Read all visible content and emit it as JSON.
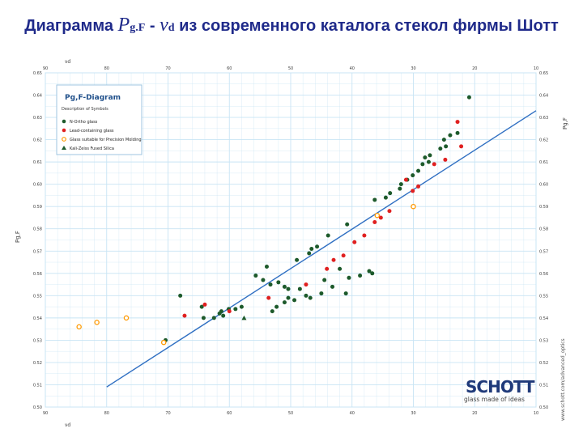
{
  "slide": {
    "title_prefix": "Диаграмма ",
    "title_p": "P",
    "title_p_sub": "g.F",
    "title_dash": " - ",
    "title_nu": "ν",
    "title_nu_sub": "d",
    "title_suffix": " из современного каталога стекол фирмы Шотт"
  },
  "legend": {
    "title": "Pg,F-Diagram",
    "subtitle": "Description of Symbols",
    "items": [
      {
        "label": "N-Ortho glass",
        "color": "#1d5a2b",
        "marker": "circle"
      },
      {
        "label": "Lead-containing glass",
        "color": "#e02020",
        "marker": "circle"
      },
      {
        "label": "Glass suitable for Precision Molding",
        "color": "#ff9900",
        "marker": "circle-open"
      },
      {
        "label": "Kali-Zeiss Fused Silica",
        "color": "#1d5a2b",
        "marker": "triangle"
      }
    ]
  },
  "brand": {
    "logo": "SCHOTT",
    "tagline": "glass made of ideas",
    "website": "www.schott.com/advanced_optics"
  },
  "colors": {
    "grid": "#c8e4f4",
    "normal_line": "#2f6fc2",
    "glass_green": "#1d5a2b",
    "glass_red": "#e02020",
    "axis_text": "#404040",
    "legend_border": "#9fc6e0"
  },
  "chart_data": {
    "type": "scatter",
    "title": "",
    "xlabel": "νd",
    "ylabel": "Pg,F",
    "x_reversed": true,
    "xlim": [
      90,
      10
    ],
    "ylim": [
      0.5,
      0.65
    ],
    "x_ticks": [
      "90",
      "80",
      "70",
      "60",
      "50",
      "40",
      "30",
      "20",
      "10"
    ],
    "y_ticks": [
      "0.50",
      "0.51",
      "0.52",
      "0.53",
      "0.54",
      "0.55",
      "0.56",
      "0.57",
      "0.58",
      "0.59",
      "0.60",
      "0.61",
      "0.62",
      "0.63",
      "0.64",
      "0.65"
    ],
    "grid": true,
    "legend_position": "top-left",
    "normal_line": {
      "x": [
        80,
        10
      ],
      "y": [
        0.509,
        0.633
      ]
    },
    "series": [
      {
        "name": "N-Ortho glass",
        "marker": "circle",
        "color": "#1d5a2b",
        "points": [
          {
            "x": 20.9,
            "y": 0.639
          },
          {
            "x": 22.8,
            "y": 0.623
          },
          {
            "x": 24.0,
            "y": 0.622
          },
          {
            "x": 25.0,
            "y": 0.62
          },
          {
            "x": 24.7,
            "y": 0.617
          },
          {
            "x": 25.6,
            "y": 0.616
          },
          {
            "x": 27.3,
            "y": 0.613
          },
          {
            "x": 28.1,
            "y": 0.612
          },
          {
            "x": 27.5,
            "y": 0.61
          },
          {
            "x": 28.5,
            "y": 0.609
          },
          {
            "x": 29.2,
            "y": 0.606
          },
          {
            "x": 30.1,
            "y": 0.604
          },
          {
            "x": 31.0,
            "y": 0.602
          },
          {
            "x": 32.0,
            "y": 0.6
          },
          {
            "x": 32.2,
            "y": 0.598
          },
          {
            "x": 33.8,
            "y": 0.596
          },
          {
            "x": 34.5,
            "y": 0.594
          },
          {
            "x": 36.3,
            "y": 0.593
          },
          {
            "x": 40.8,
            "y": 0.582
          },
          {
            "x": 43.9,
            "y": 0.577
          },
          {
            "x": 45.7,
            "y": 0.572
          },
          {
            "x": 46.6,
            "y": 0.571
          },
          {
            "x": 47.0,
            "y": 0.569
          },
          {
            "x": 49.0,
            "y": 0.566
          },
          {
            "x": 53.9,
            "y": 0.563
          },
          {
            "x": 55.7,
            "y": 0.559
          },
          {
            "x": 54.5,
            "y": 0.557
          },
          {
            "x": 53.3,
            "y": 0.555
          },
          {
            "x": 52.0,
            "y": 0.556
          },
          {
            "x": 51.0,
            "y": 0.554
          },
          {
            "x": 50.4,
            "y": 0.553
          },
          {
            "x": 48.5,
            "y": 0.553
          },
          {
            "x": 47.5,
            "y": 0.55
          },
          {
            "x": 46.8,
            "y": 0.549
          },
          {
            "x": 45.0,
            "y": 0.551
          },
          {
            "x": 43.2,
            "y": 0.554
          },
          {
            "x": 41.0,
            "y": 0.551
          },
          {
            "x": 40.5,
            "y": 0.558
          },
          {
            "x": 38.7,
            "y": 0.559
          },
          {
            "x": 37.2,
            "y": 0.561
          },
          {
            "x": 36.7,
            "y": 0.56
          },
          {
            "x": 44.5,
            "y": 0.557
          },
          {
            "x": 42.0,
            "y": 0.562
          },
          {
            "x": 49.4,
            "y": 0.548
          },
          {
            "x": 50.4,
            "y": 0.549
          },
          {
            "x": 51.0,
            "y": 0.547
          },
          {
            "x": 52.3,
            "y": 0.545
          },
          {
            "x": 53.0,
            "y": 0.543
          },
          {
            "x": 58.0,
            "y": 0.545
          },
          {
            "x": 59.0,
            "y": 0.544
          },
          {
            "x": 60.1,
            "y": 0.544
          },
          {
            "x": 61.3,
            "y": 0.543
          },
          {
            "x": 64.2,
            "y": 0.54
          },
          {
            "x": 64.5,
            "y": 0.545
          },
          {
            "x": 68.0,
            "y": 0.55
          },
          {
            "x": 61.0,
            "y": 0.541
          },
          {
            "x": 70.4,
            "y": 0.53
          },
          {
            "x": 61.6,
            "y": 0.542
          },
          {
            "x": 62.5,
            "y": 0.54
          }
        ]
      },
      {
        "name": "Lead-containing glass",
        "marker": "circle",
        "color": "#e02020",
        "points": [
          {
            "x": 22.8,
            "y": 0.628
          },
          {
            "x": 22.2,
            "y": 0.617
          },
          {
            "x": 26.6,
            "y": 0.609
          },
          {
            "x": 24.8,
            "y": 0.611
          },
          {
            "x": 29.2,
            "y": 0.599
          },
          {
            "x": 30.1,
            "y": 0.597
          },
          {
            "x": 31.2,
            "y": 0.602
          },
          {
            "x": 33.9,
            "y": 0.588
          },
          {
            "x": 35.3,
            "y": 0.585
          },
          {
            "x": 36.3,
            "y": 0.583
          },
          {
            "x": 38.0,
            "y": 0.577
          },
          {
            "x": 39.6,
            "y": 0.574
          },
          {
            "x": 41.4,
            "y": 0.568
          },
          {
            "x": 43.0,
            "y": 0.566
          },
          {
            "x": 44.1,
            "y": 0.562
          },
          {
            "x": 47.5,
            "y": 0.555
          },
          {
            "x": 53.6,
            "y": 0.549
          },
          {
            "x": 60.0,
            "y": 0.543
          },
          {
            "x": 64.0,
            "y": 0.546
          },
          {
            "x": 67.3,
            "y": 0.541
          }
        ]
      },
      {
        "name": "Glass suitable for Precision Molding",
        "marker": "circle-open",
        "color": "#ff9900",
        "points": [
          {
            "x": 81.6,
            "y": 0.538
          },
          {
            "x": 84.5,
            "y": 0.536
          },
          {
            "x": 76.8,
            "y": 0.54
          },
          {
            "x": 70.7,
            "y": 0.529
          },
          {
            "x": 30.0,
            "y": 0.59
          },
          {
            "x": 35.9,
            "y": 0.586
          }
        ]
      },
      {
        "name": "Kali-Zeiss Fused Silica",
        "marker": "triangle",
        "color": "#1d5a2b",
        "points": [
          {
            "x": 57.6,
            "y": 0.54
          }
        ]
      }
    ]
  }
}
